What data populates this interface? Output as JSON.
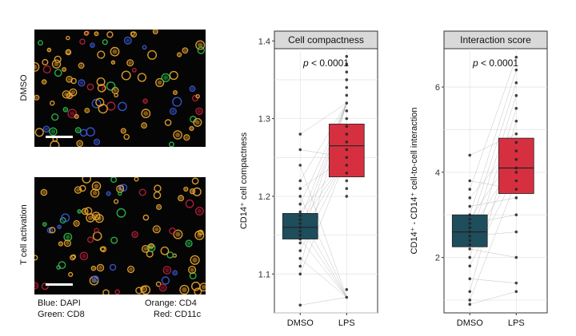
{
  "micrographs": {
    "rows": [
      {
        "label": "DMSO"
      },
      {
        "label": "T cell activation"
      }
    ],
    "legend": {
      "blue": "Blue: DAPI",
      "green": "Green: CD8",
      "orange": "Orange: CD4",
      "red": "Red: CD11c"
    },
    "channel_colors": {
      "DAPI": "#3b5bdb",
      "CD8": "#2fbf4f",
      "CD4": "#f0a830",
      "CD11c": "#c0203a"
    }
  },
  "chart_data": [
    {
      "type": "box",
      "title": "Cell compactness",
      "ylabel": "CD14⁺ cell compactness",
      "xlabel": "",
      "categories": [
        "DMSO",
        "LPS"
      ],
      "ylim": [
        1.05,
        1.39
      ],
      "yticks": [
        1.1,
        1.2,
        1.3,
        1.4
      ],
      "annotation": "p < 0.0001",
      "grid": true,
      "boxes": [
        {
          "name": "DMSO",
          "q1": 1.145,
          "median": 1.16,
          "q3": 1.178,
          "color": "#1e4d5c"
        },
        {
          "name": "LPS",
          "q1": 1.225,
          "median": 1.265,
          "q3": 1.293,
          "color": "#d63040"
        }
      ],
      "points": {
        "DMSO": [
          1.06,
          1.1,
          1.11,
          1.12,
          1.13,
          1.14,
          1.145,
          1.15,
          1.155,
          1.16,
          1.165,
          1.17,
          1.175,
          1.18,
          1.19,
          1.2,
          1.21,
          1.22,
          1.24,
          1.26,
          1.28
        ],
        "LPS": [
          1.07,
          1.08,
          1.2,
          1.21,
          1.22,
          1.23,
          1.24,
          1.25,
          1.26,
          1.27,
          1.28,
          1.29,
          1.3,
          1.31,
          1.32,
          1.33,
          1.34,
          1.35,
          1.36,
          1.37,
          1.38
        ]
      }
    },
    {
      "type": "box",
      "title": "Interaction score",
      "ylabel": "CD14⁺ - CD14⁺ cell-to-cell interaction",
      "xlabel": "",
      "categories": [
        "DMSO",
        "LPS"
      ],
      "ylim": [
        0.7,
        6.9
      ],
      "yticks": [
        2,
        4,
        6
      ],
      "annotation": "p < 0.0001",
      "grid": true,
      "boxes": [
        {
          "name": "DMSO",
          "q1": 2.25,
          "median": 2.6,
          "q3": 3.0,
          "color": "#1e4d5c"
        },
        {
          "name": "LPS",
          "q1": 3.5,
          "median": 4.1,
          "q3": 4.8,
          "color": "#d63040"
        }
      ],
      "points": {
        "DMSO": [
          0.9,
          1.0,
          1.2,
          1.5,
          1.8,
          2.0,
          2.2,
          2.3,
          2.4,
          2.5,
          2.6,
          2.7,
          2.8,
          2.9,
          3.0,
          3.2,
          3.4,
          3.6,
          3.8,
          4.4
        ],
        "LPS": [
          1.2,
          1.4,
          2.0,
          2.6,
          3.0,
          3.4,
          3.6,
          3.8,
          4.0,
          4.1,
          4.3,
          4.5,
          4.7,
          4.9,
          5.2,
          5.5,
          5.8,
          6.1,
          6.4,
          6.7
        ]
      }
    }
  ]
}
